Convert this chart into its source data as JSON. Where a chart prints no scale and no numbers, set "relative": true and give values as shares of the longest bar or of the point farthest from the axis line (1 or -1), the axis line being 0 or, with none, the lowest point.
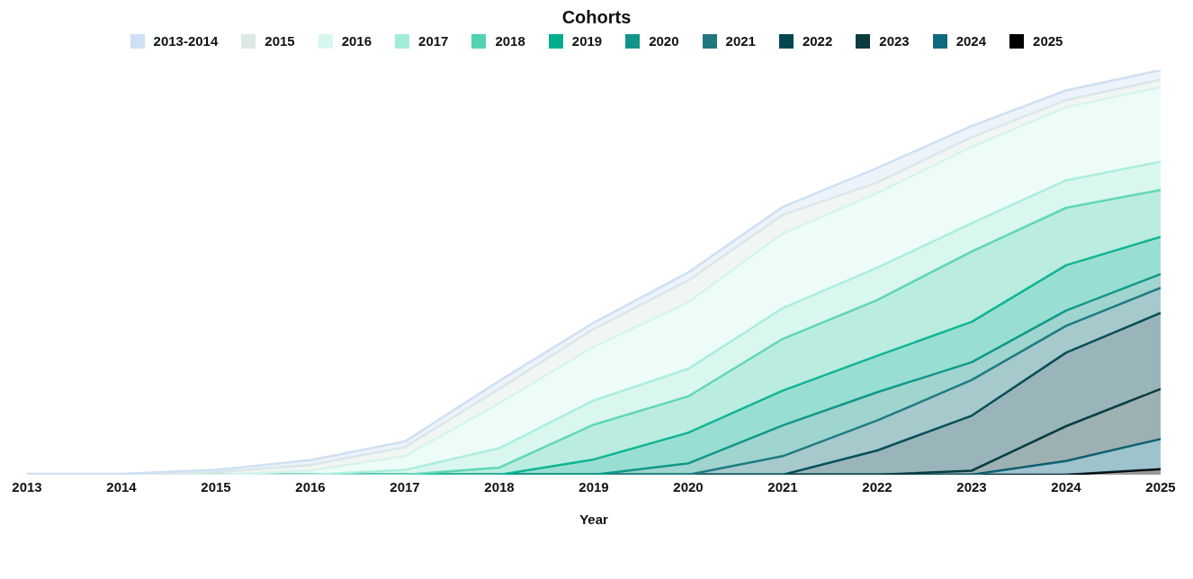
{
  "chart_data": {
    "type": "area",
    "title": "Cohorts",
    "xlabel": "Year",
    "stacked": true,
    "relative": true,
    "legend": "top",
    "categories": [
      "2013",
      "2014",
      "2015",
      "2016",
      "2017",
      "2018",
      "2019",
      "2020",
      "2021",
      "2022",
      "2023",
      "2024",
      "2025"
    ],
    "series": [
      {
        "name": "2025",
        "color": "#000000",
        "values": [
          0,
          0,
          0,
          0,
          0,
          0,
          0,
          0,
          0,
          0,
          0,
          0,
          0.014
        ]
      },
      {
        "name": "2024",
        "color": "#0f6a80",
        "values": [
          0,
          0,
          0,
          0,
          0,
          0,
          0,
          0,
          0,
          0,
          0,
          0.034,
          0.074
        ]
      },
      {
        "name": "2023",
        "color": "#0b3b3f",
        "values": [
          0,
          0,
          0,
          0,
          0,
          0,
          0,
          0,
          0,
          0,
          0.01,
          0.086,
          0.124
        ]
      },
      {
        "name": "2022",
        "color": "#00474f",
        "values": [
          0,
          0,
          0,
          0,
          0,
          0,
          0,
          0,
          0,
          0.06,
          0.136,
          0.182,
          0.188
        ]
      },
      {
        "name": "2021",
        "color": "#21777f",
        "values": [
          0,
          0,
          0,
          0,
          0,
          0,
          0,
          0,
          0.046,
          0.074,
          0.088,
          0.066,
          0.062
        ]
      },
      {
        "name": "2020",
        "color": "#129488",
        "values": [
          0,
          0,
          0,
          0,
          0,
          0,
          0,
          0.028,
          0.076,
          0.07,
          0.044,
          0.038,
          0.034
        ]
      },
      {
        "name": "2019",
        "color": "#00ad8f",
        "values": [
          0,
          0,
          0,
          0,
          0,
          0,
          0.038,
          0.076,
          0.086,
          0.09,
          0.1,
          0.112,
          0.092
        ]
      },
      {
        "name": "2018",
        "color": "#52d2b0",
        "values": [
          0,
          0,
          0,
          0,
          0,
          0.018,
          0.086,
          0.09,
          0.128,
          0.138,
          0.174,
          0.142,
          0.116
        ]
      },
      {
        "name": "2017",
        "color": "#a3ecd8",
        "values": [
          0,
          0,
          0,
          0,
          0.012,
          0.048,
          0.06,
          0.068,
          0.076,
          0.08,
          0.07,
          0.068,
          0.07
        ]
      },
      {
        "name": "2016",
        "color": "#d5f7ef",
        "values": [
          0,
          0,
          0,
          0.01,
          0.034,
          0.11,
          0.132,
          0.164,
          0.184,
          0.184,
          0.188,
          0.18,
          0.184
        ]
      },
      {
        "name": "2015",
        "color": "#dde9e6",
        "values": [
          0,
          0,
          0.006,
          0.014,
          0.022,
          0.036,
          0.044,
          0.054,
          0.046,
          0.026,
          0.024,
          0.018,
          0.018
        ]
      },
      {
        "name": "2013-2014",
        "color": "#cfe0f2",
        "values": [
          0.002,
          0.002,
          0.006,
          0.012,
          0.014,
          0.02,
          0.016,
          0.02,
          0.02,
          0.036,
          0.028,
          0.024,
          0.024
        ]
      }
    ]
  }
}
